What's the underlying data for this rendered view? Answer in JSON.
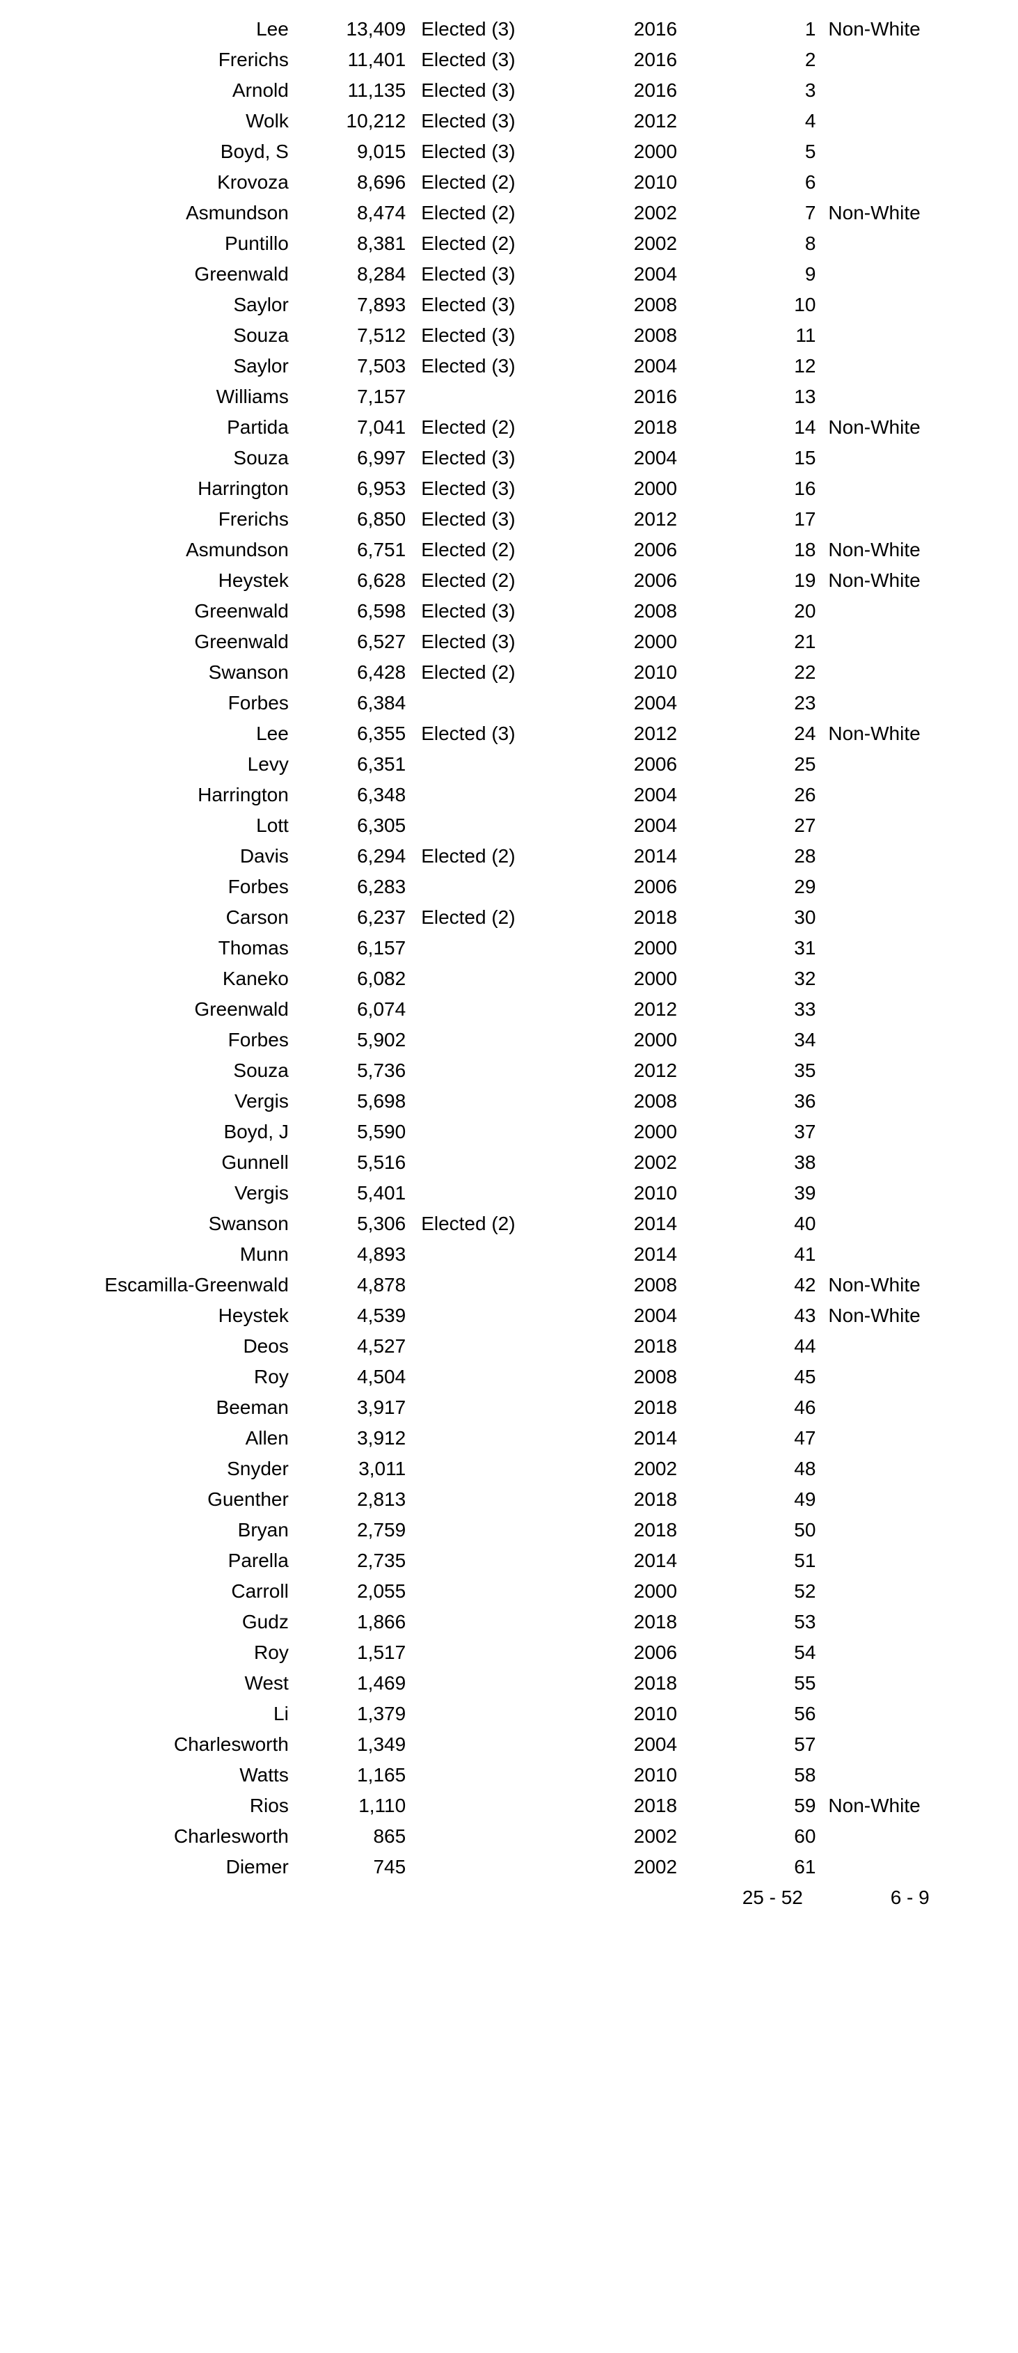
{
  "table": {
    "background_color": "#ffffff",
    "text_color": "#000000",
    "font_family": "Arial",
    "font_size_pt": 21,
    "columns": [
      {
        "key": "name",
        "align": "right"
      },
      {
        "key": "votes",
        "align": "right"
      },
      {
        "key": "status",
        "align": "left"
      },
      {
        "key": "year",
        "align": "center"
      },
      {
        "key": "rank",
        "align": "right"
      },
      {
        "key": "note",
        "align": "left"
      }
    ],
    "rows": [
      {
        "name": "Lee",
        "votes": "13,409",
        "status": "Elected (3)",
        "year": "2016",
        "rank": "1",
        "note": "Non-White"
      },
      {
        "name": "Frerichs",
        "votes": "11,401",
        "status": "Elected (3)",
        "year": "2016",
        "rank": "2",
        "note": ""
      },
      {
        "name": "Arnold",
        "votes": "11,135",
        "status": "Elected (3)",
        "year": "2016",
        "rank": "3",
        "note": ""
      },
      {
        "name": "Wolk",
        "votes": "10,212",
        "status": "Elected (3)",
        "year": "2012",
        "rank": "4",
        "note": ""
      },
      {
        "name": "Boyd, S",
        "votes": "9,015",
        "status": "Elected (3)",
        "year": "2000",
        "rank": "5",
        "note": ""
      },
      {
        "name": "Krovoza",
        "votes": "8,696",
        "status": "Elected (2)",
        "year": "2010",
        "rank": "6",
        "note": ""
      },
      {
        "name": "Asmundson",
        "votes": "8,474",
        "status": "Elected (2)",
        "year": "2002",
        "rank": "7",
        "note": "Non-White"
      },
      {
        "name": "Puntillo",
        "votes": "8,381",
        "status": "Elected (2)",
        "year": "2002",
        "rank": "8",
        "note": ""
      },
      {
        "name": "Greenwald",
        "votes": "8,284",
        "status": "Elected (3)",
        "year": "2004",
        "rank": "9",
        "note": ""
      },
      {
        "name": "Saylor",
        "votes": "7,893",
        "status": "Elected (3)",
        "year": "2008",
        "rank": "10",
        "note": ""
      },
      {
        "name": "Souza",
        "votes": "7,512",
        "status": "Elected (3)",
        "year": "2008",
        "rank": "11",
        "note": ""
      },
      {
        "name": "Saylor",
        "votes": "7,503",
        "status": "Elected (3)",
        "year": "2004",
        "rank": "12",
        "note": ""
      },
      {
        "name": "Williams",
        "votes": "7,157",
        "status": "",
        "year": "2016",
        "rank": "13",
        "note": ""
      },
      {
        "name": "Partida",
        "votes": "7,041",
        "status": "Elected (2)",
        "year": "2018",
        "rank": "14",
        "note": "Non-White"
      },
      {
        "name": "Souza",
        "votes": "6,997",
        "status": "Elected (3)",
        "year": "2004",
        "rank": "15",
        "note": ""
      },
      {
        "name": "Harrington",
        "votes": "6,953",
        "status": "Elected (3)",
        "year": "2000",
        "rank": "16",
        "note": ""
      },
      {
        "name": "Frerichs",
        "votes": "6,850",
        "status": "Elected (3)",
        "year": "2012",
        "rank": "17",
        "note": ""
      },
      {
        "name": "Asmundson",
        "votes": "6,751",
        "status": "Elected (2)",
        "year": "2006",
        "rank": "18",
        "note": "Non-White"
      },
      {
        "name": "Heystek",
        "votes": "6,628",
        "status": "Elected (2)",
        "year": "2006",
        "rank": "19",
        "note": "Non-White"
      },
      {
        "name": "Greenwald",
        "votes": "6,598",
        "status": "Elected (3)",
        "year": "2008",
        "rank": "20",
        "note": ""
      },
      {
        "name": "Greenwald",
        "votes": "6,527",
        "status": "Elected (3)",
        "year": "2000",
        "rank": "21",
        "note": ""
      },
      {
        "name": "Swanson",
        "votes": "6,428",
        "status": "Elected (2)",
        "year": "2010",
        "rank": "22",
        "note": ""
      },
      {
        "name": "Forbes",
        "votes": "6,384",
        "status": "",
        "year": "2004",
        "rank": "23",
        "note": ""
      },
      {
        "name": "Lee",
        "votes": "6,355",
        "status": "Elected (3)",
        "year": "2012",
        "rank": "24",
        "note": "Non-White"
      },
      {
        "name": "Levy",
        "votes": "6,351",
        "status": "",
        "year": "2006",
        "rank": "25",
        "note": ""
      },
      {
        "name": "Harrington",
        "votes": "6,348",
        "status": "",
        "year": "2004",
        "rank": "26",
        "note": ""
      },
      {
        "name": "Lott",
        "votes": "6,305",
        "status": "",
        "year": "2004",
        "rank": "27",
        "note": ""
      },
      {
        "name": "Davis",
        "votes": "6,294",
        "status": "Elected (2)",
        "year": "2014",
        "rank": "28",
        "note": ""
      },
      {
        "name": "Forbes",
        "votes": "6,283",
        "status": "",
        "year": "2006",
        "rank": "29",
        "note": ""
      },
      {
        "name": "Carson",
        "votes": "6,237",
        "status": "Elected (2)",
        "year": "2018",
        "rank": "30",
        "note": ""
      },
      {
        "name": "Thomas",
        "votes": "6,157",
        "status": "",
        "year": "2000",
        "rank": "31",
        "note": ""
      },
      {
        "name": "Kaneko",
        "votes": "6,082",
        "status": "",
        "year": "2000",
        "rank": "32",
        "note": ""
      },
      {
        "name": "Greenwald",
        "votes": "6,074",
        "status": "",
        "year": "2012",
        "rank": "33",
        "note": ""
      },
      {
        "name": "Forbes",
        "votes": "5,902",
        "status": "",
        "year": "2000",
        "rank": "34",
        "note": ""
      },
      {
        "name": "Souza",
        "votes": "5,736",
        "status": "",
        "year": "2012",
        "rank": "35",
        "note": ""
      },
      {
        "name": "Vergis",
        "votes": "5,698",
        "status": "",
        "year": "2008",
        "rank": "36",
        "note": ""
      },
      {
        "name": "Boyd, J",
        "votes": "5,590",
        "status": "",
        "year": "2000",
        "rank": "37",
        "note": ""
      },
      {
        "name": "Gunnell",
        "votes": "5,516",
        "status": "",
        "year": "2002",
        "rank": "38",
        "note": ""
      },
      {
        "name": "Vergis",
        "votes": "5,401",
        "status": "",
        "year": "2010",
        "rank": "39",
        "note": ""
      },
      {
        "name": "Swanson",
        "votes": "5,306",
        "status": "Elected (2)",
        "year": "2014",
        "rank": "40",
        "note": ""
      },
      {
        "name": "Munn",
        "votes": "4,893",
        "status": "",
        "year": "2014",
        "rank": "41",
        "note": ""
      },
      {
        "name": "Escamilla-Greenwald",
        "votes": "4,878",
        "status": "",
        "year": "2008",
        "rank": "42",
        "note": "Non-White"
      },
      {
        "name": "Heystek",
        "votes": "4,539",
        "status": "",
        "year": "2004",
        "rank": "43",
        "note": "Non-White"
      },
      {
        "name": "Deos",
        "votes": "4,527",
        "status": "",
        "year": "2018",
        "rank": "44",
        "note": ""
      },
      {
        "name": "Roy",
        "votes": "4,504",
        "status": "",
        "year": "2008",
        "rank": "45",
        "note": ""
      },
      {
        "name": "Beeman",
        "votes": "3,917",
        "status": "",
        "year": "2018",
        "rank": "46",
        "note": ""
      },
      {
        "name": "Allen",
        "votes": "3,912",
        "status": "",
        "year": "2014",
        "rank": "47",
        "note": ""
      },
      {
        "name": "Snyder",
        "votes": "3,011",
        "status": "",
        "year": "2002",
        "rank": "48",
        "note": ""
      },
      {
        "name": "Guenther",
        "votes": "2,813",
        "status": "",
        "year": "2018",
        "rank": "49",
        "note": ""
      },
      {
        "name": "Bryan",
        "votes": "2,759",
        "status": "",
        "year": "2018",
        "rank": "50",
        "note": ""
      },
      {
        "name": "Parella",
        "votes": "2,735",
        "status": "",
        "year": "2014",
        "rank": "51",
        "note": ""
      },
      {
        "name": "Carroll",
        "votes": "2,055",
        "status": "",
        "year": "2000",
        "rank": "52",
        "note": ""
      },
      {
        "name": "Gudz",
        "votes": "1,866",
        "status": "",
        "year": "2018",
        "rank": "53",
        "note": ""
      },
      {
        "name": "Roy",
        "votes": "1,517",
        "status": "",
        "year": "2006",
        "rank": "54",
        "note": ""
      },
      {
        "name": "West",
        "votes": "1,469",
        "status": "",
        "year": "2018",
        "rank": "55",
        "note": ""
      },
      {
        "name": "Li",
        "votes": "1,379",
        "status": "",
        "year": "2010",
        "rank": "56",
        "note": ""
      },
      {
        "name": "Charlesworth",
        "votes": "1,349",
        "status": "",
        "year": "2004",
        "rank": "57",
        "note": ""
      },
      {
        "name": "Watts",
        "votes": "1,165",
        "status": "",
        "year": "2010",
        "rank": "58",
        "note": ""
      },
      {
        "name": "Rios",
        "votes": "1,110",
        "status": "",
        "year": "2018",
        "rank": "59",
        "note": "Non-White"
      },
      {
        "name": "Charlesworth",
        "votes": "865",
        "status": "",
        "year": "2002",
        "rank": "60",
        "note": ""
      },
      {
        "name": "Diemer",
        "votes": "745",
        "status": "",
        "year": "2002",
        "rank": "61",
        "note": ""
      }
    ],
    "summary": {
      "rank_range": "25 - 52",
      "note_range": "6 - 9"
    }
  }
}
